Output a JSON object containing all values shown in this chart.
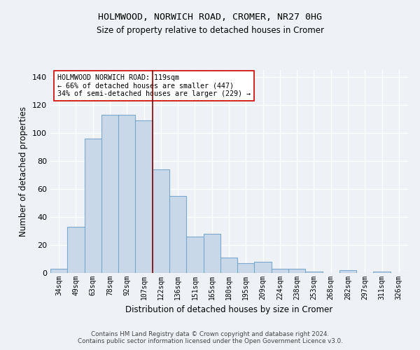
{
  "title1": "HOLMWOOD, NORWICH ROAD, CROMER, NR27 0HG",
  "title2": "Size of property relative to detached houses in Cromer",
  "xlabel": "Distribution of detached houses by size in Cromer",
  "ylabel": "Number of detached properties",
  "footnote1": "Contains HM Land Registry data © Crown copyright and database right 2024.",
  "footnote2": "Contains public sector information licensed under the Open Government Licence v3.0.",
  "bar_labels": [
    "34sqm",
    "49sqm",
    "63sqm",
    "78sqm",
    "92sqm",
    "107sqm",
    "122sqm",
    "136sqm",
    "151sqm",
    "165sqm",
    "180sqm",
    "195sqm",
    "209sqm",
    "224sqm",
    "238sqm",
    "253sqm",
    "268sqm",
    "282sqm",
    "297sqm",
    "311sqm",
    "326sqm"
  ],
  "bar_values": [
    3,
    33,
    96,
    113,
    113,
    109,
    74,
    55,
    26,
    28,
    11,
    7,
    8,
    3,
    3,
    1,
    0,
    2,
    0,
    1,
    0
  ],
  "bar_color": "#c8d8e8",
  "bar_edgecolor": "#7aa8cc",
  "vline_x": 5.5,
  "vline_color": "#8b0000",
  "annotation_title": "HOLMWOOD NORWICH ROAD: 119sqm",
  "annotation_line2": "← 66% of detached houses are smaller (447)",
  "annotation_line3": "34% of semi-detached houses are larger (229) →",
  "ylim": [
    0,
    145
  ],
  "yticks": [
    0,
    20,
    40,
    60,
    80,
    100,
    120,
    140
  ],
  "bg_color": "#eef2f6",
  "grid_color": "#ffffff"
}
